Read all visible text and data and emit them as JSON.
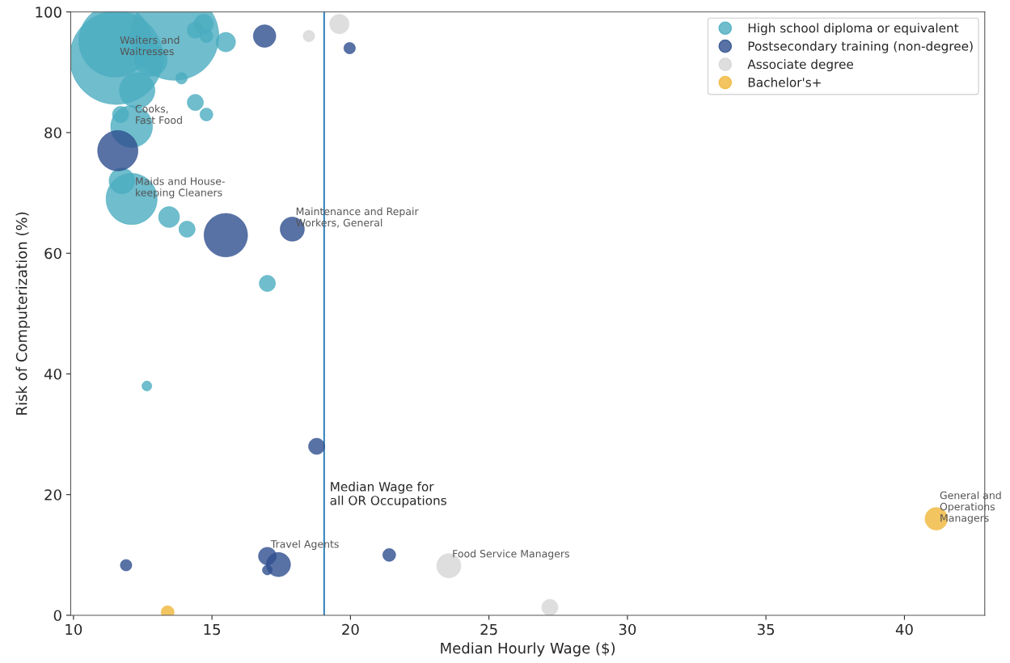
{
  "chart_data": {
    "type": "bubble",
    "xlabel": "Median Hourly Wage ($)",
    "ylabel": "Risk of Computerization (%)",
    "xlim": [
      9.9,
      42.9
    ],
    "ylim": [
      0,
      100
    ],
    "xticks": [
      10,
      15,
      20,
      25,
      30,
      35,
      40
    ],
    "yticks": [
      0,
      20,
      40,
      60,
      80,
      100
    ],
    "legend": "top right",
    "marker": "circle",
    "grid": false,
    "series": [
      {
        "name": "High school diploma or equivalent",
        "color": "#4bacc0",
        "x": [
          11.55,
          13.65,
          11.5,
          14.7,
          14.4,
          14.8,
          15.5,
          12.8,
          12.3,
          13.9,
          14.4,
          14.8,
          11.7,
          12.1,
          11.75,
          12.1,
          13.45,
          14.1,
          17.0,
          12.65
        ],
        "values": [
          92.4,
          96,
          95.2,
          98,
          97,
          96,
          95,
          92,
          87,
          89,
          85,
          83,
          83,
          81,
          72,
          69,
          66,
          64,
          55,
          38
        ],
        "sizes": [
          1,
          0.9,
          0.6,
          0.043,
          0.03,
          0.019,
          0.043,
          0.12,
          0.144,
          0.015,
          0.03,
          0.019,
          0.03,
          0.2,
          0.076,
          0.3,
          0.05,
          0.03,
          0.03,
          0.011
        ]
      },
      {
        "name": "Postsecondary training (non-degree)",
        "color": "#2f4f8f",
        "x": [
          11.6,
          15.5,
          17.9,
          16.9,
          19.97,
          18.78,
          11.9,
          17.0,
          17.4,
          17.0,
          21.4
        ],
        "values": [
          77,
          63,
          64,
          96,
          94,
          28,
          8.3,
          9.8,
          8.4,
          7.5,
          10
        ],
        "sizes": [
          0.186,
          0.217,
          0.067,
          0.058,
          0.015,
          0.03,
          0.015,
          0.036,
          0.067,
          0.011,
          0.019
        ]
      },
      {
        "name": "Associate degree",
        "color": "#d6d6d6",
        "x": [
          19.6,
          18.5,
          23.55,
          27.2
        ],
        "values": [
          98,
          96,
          8.2,
          1.3
        ],
        "sizes": [
          0.043,
          0.015,
          0.067,
          0.03
        ]
      },
      {
        "name": "Bachelor's+",
        "color": "#f0b73a",
        "x": [
          41.15,
          13.4
        ],
        "values": [
          16,
          0.5
        ],
        "sizes": [
          0.058,
          0.019
        ]
      }
    ],
    "ref_lines": [
      {
        "axis": "x",
        "value": 19.05,
        "label": "Median Wage for\nall OR Occupations",
        "color": "#1f77b4"
      }
    ],
    "annotations": [
      {
        "text": "Waiters and\nWaitresses",
        "x": 11.55,
        "y": 92.4
      },
      {
        "text": "Cooks,\nFast Food",
        "x": 12.1,
        "y": 81
      },
      {
        "text": "Maids and House-\nkeeping Cleaners",
        "x": 12.1,
        "y": 69
      },
      {
        "text": "Maintenance and Repair\nWorkers, General",
        "x": 17.9,
        "y": 64
      },
      {
        "text": "Travel Agents",
        "x": 17.0,
        "y": 9.8
      },
      {
        "text": "Food Service Managers",
        "x": 23.55,
        "y": 8.2
      },
      {
        "text": "General and\nOperations\nManagers",
        "x": 41.15,
        "y": 16
      }
    ]
  }
}
